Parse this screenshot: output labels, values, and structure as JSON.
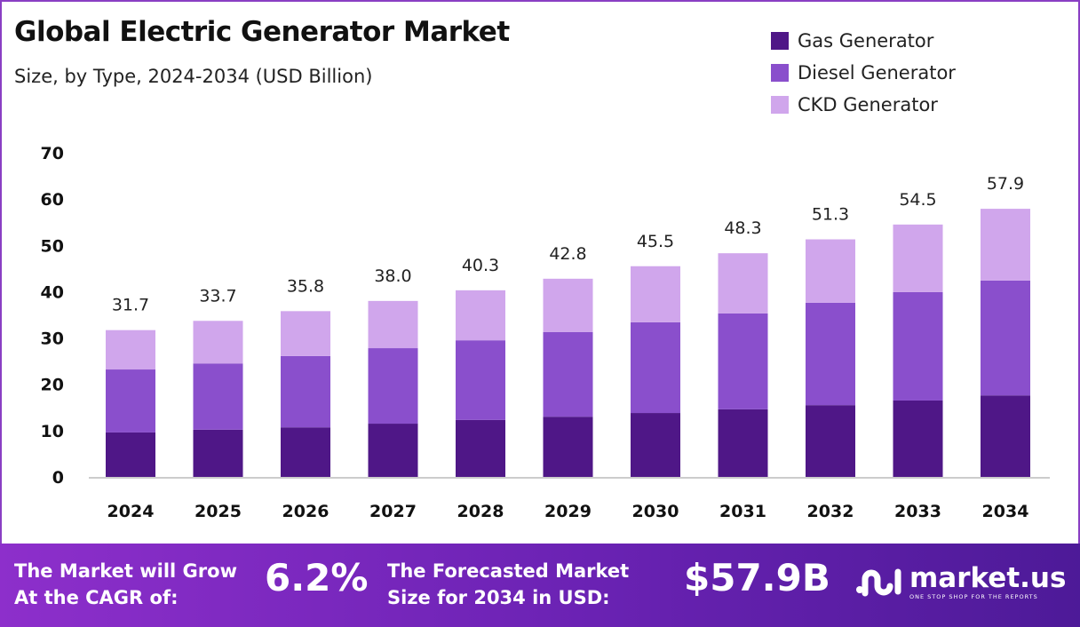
{
  "chart_data": {
    "type": "bar",
    "stacked": true,
    "title": "Global Electric Generator Market",
    "subtitle": "Size, by Type, 2024-2034 (USD Billion)",
    "categories": [
      "2024",
      "2025",
      "2026",
      "2027",
      "2028",
      "2029",
      "2030",
      "2031",
      "2032",
      "2033",
      "2034"
    ],
    "series": [
      {
        "name": "Gas Generator",
        "color": "#4f1787",
        "values": [
          9.6,
          10.2,
          10.7,
          11.5,
          12.3,
          13.0,
          13.8,
          14.6,
          15.5,
          16.5,
          17.6
        ]
      },
      {
        "name": "Diesel Generator",
        "color": "#8a4fcc",
        "values": [
          13.6,
          14.3,
          15.4,
          16.3,
          17.2,
          18.3,
          19.6,
          20.7,
          22.1,
          23.4,
          24.8
        ]
      },
      {
        "name": "CKD Generator",
        "color": "#d0a6ec",
        "values": [
          8.5,
          9.2,
          9.7,
          10.2,
          10.8,
          11.5,
          12.1,
          13.0,
          13.7,
          14.6,
          15.5
        ]
      }
    ],
    "totals": [
      "31.7",
      "33.7",
      "35.8",
      "38.0",
      "40.3",
      "42.8",
      "45.5",
      "48.3",
      "51.3",
      "54.5",
      "57.9"
    ],
    "yticks": [
      "0",
      "10",
      "20",
      "30",
      "40",
      "50",
      "60",
      "70"
    ],
    "ylim": [
      0,
      70
    ],
    "grid": false,
    "legend_position": "top-right"
  },
  "banner": {
    "cagr_label": "The Market will Grow At the CAGR of:",
    "cagr_value": "6.2%",
    "forecast_label": "The Forecasted Market Size for 2034 in USD:",
    "forecast_value": "$57.9B",
    "logo_name": "market.us",
    "logo_tagline": "ONE STOP SHOP FOR THE REPORTS"
  }
}
